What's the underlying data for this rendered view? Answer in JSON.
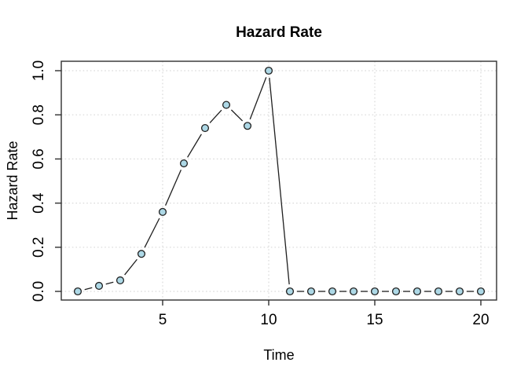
{
  "chart_data": {
    "type": "line",
    "title": "Hazard Rate",
    "xlabel": "Time",
    "ylabel": "Hazard Rate",
    "x": [
      1,
      2,
      3,
      4,
      5,
      6,
      7,
      8,
      9,
      10,
      11,
      12,
      13,
      14,
      15,
      16,
      17,
      18,
      19,
      20
    ],
    "y": [
      0.0,
      0.025,
      0.05,
      0.17,
      0.36,
      0.58,
      0.74,
      0.845,
      0.75,
      1.0,
      0.0,
      0.0,
      0.0,
      0.0,
      0.0,
      0.0,
      0.0,
      0.0,
      0.0,
      0.0
    ],
    "xticks": [
      5,
      10,
      15,
      20
    ],
    "xtick_labels": [
      "5",
      "10",
      "15",
      "20"
    ],
    "yticks": [
      0.0,
      0.2,
      0.4,
      0.6,
      0.8,
      1.0
    ],
    "ytick_labels": [
      "0.0",
      "0.2",
      "0.4",
      "0.6",
      "0.8",
      "1.0"
    ],
    "xlim": [
      0.24,
      20.76
    ],
    "ylim": [
      -0.04,
      1.04
    ],
    "grid": true,
    "line_style": "points-with-segments",
    "marker": "filled-circle",
    "legend": "none",
    "colors": {
      "background": "#ffffff",
      "marker_fill": "#ADD8E6",
      "marker_stroke": "#1f1f1f",
      "line": "#1f1f1f",
      "grid": "#d9d9d9",
      "box": "#2f2f2f",
      "text": "#000000"
    }
  }
}
